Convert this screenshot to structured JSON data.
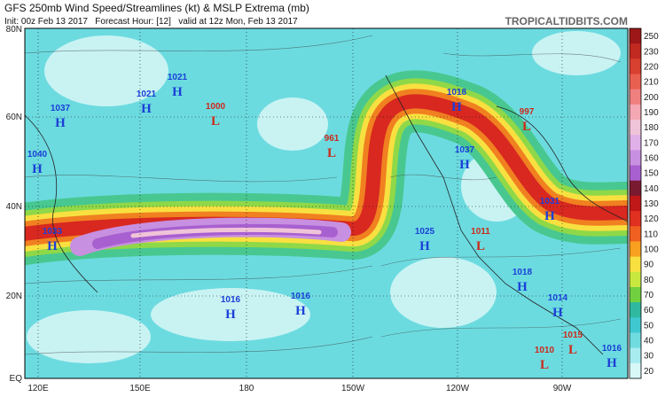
{
  "header": {
    "title": "GFS 250mb Wind Speed/Streamlines (kt) & MSLP Extrema (mb)",
    "subtitle": "Init: 00z Feb 13 2017   Forecast Hour: [12]   valid at 12z Mon, Feb 13 2017",
    "source": "TROPICALTIDBITS.COM"
  },
  "axes": {
    "latitude_labels": [
      "80N",
      "60N",
      "40N",
      "20N",
      "EQ"
    ],
    "longitude_labels": [
      "120E",
      "150E",
      "180",
      "150W",
      "120W",
      "90W"
    ]
  },
  "colorbar": {
    "labels": [
      250,
      230,
      220,
      210,
      200,
      190,
      180,
      170,
      160,
      150,
      140,
      130,
      120,
      110,
      100,
      90,
      80,
      70,
      60,
      50,
      40,
      30,
      20
    ],
    "colors": [
      "#9c1818",
      "#c02a20",
      "#d84030",
      "#e86050",
      "#f08080",
      "#f4a8b4",
      "#f0c4d8",
      "#e0b0e8",
      "#c890e0",
      "#a860d0",
      "#7a1a30",
      "#c01818",
      "#e03020",
      "#f06020",
      "#f8a020",
      "#f8e040",
      "#c8e840",
      "#70d040",
      "#30b8a0",
      "#40c8d0",
      "#70dce0",
      "#a8ecf0",
      "#d8f8f8"
    ]
  },
  "pressure_centers": [
    {
      "type": "H",
      "value": 1037
    },
    {
      "type": "H",
      "value": 1021
    },
    {
      "type": "H",
      "value": 1021
    },
    {
      "type": "L",
      "value": 1000
    },
    {
      "type": "H",
      "value": 1040
    },
    {
      "type": "L",
      "value": 961
    },
    {
      "type": "H",
      "value": 1018
    },
    {
      "type": "L",
      "value": 997
    },
    {
      "type": "H",
      "value": 1037
    },
    {
      "type": "H",
      "value": 1031
    },
    {
      "type": "H",
      "value": 1033
    },
    {
      "type": "H",
      "value": 1025
    },
    {
      "type": "L",
      "value": 1011
    },
    {
      "type": "H",
      "value": 1018
    },
    {
      "type": "H",
      "value": 1016
    },
    {
      "type": "H",
      "value": 1016
    },
    {
      "type": "H",
      "value": 1014
    },
    {
      "type": "L",
      "value": 1015
    },
    {
      "type": "L",
      "value": 1010
    },
    {
      "type": "H",
      "value": 1016
    }
  ]
}
